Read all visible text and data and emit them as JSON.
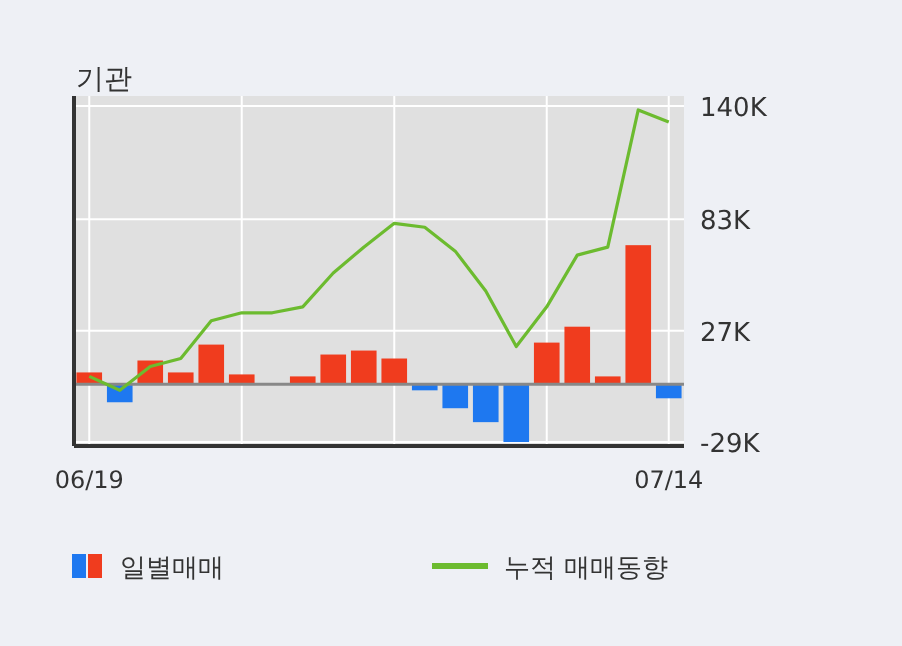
{
  "chart_data": {
    "type": "bar",
    "title": "기관",
    "categories": [
      "06/19",
      null,
      null,
      null,
      null,
      null,
      null,
      null,
      null,
      null,
      null,
      null,
      null,
      null,
      null,
      null,
      null,
      null,
      null,
      "07/14"
    ],
    "series": [
      {
        "name": "일별매매",
        "colors": [
          "#f03c1e",
          "#1e78f0",
          "#f03c1e",
          "#f03c1e",
          "#f03c1e",
          "#f03c1e",
          "#f03c1e",
          "#f03c1e",
          "#f03c1e",
          "#f03c1e",
          "#f03c1e",
          "#1e78f0",
          "#1e78f0",
          "#1e78f0",
          "#1e78f0",
          "#f03c1e",
          "#f03c1e",
          "#f03c1e",
          "#f03c1e",
          "#1e78f0"
        ],
        "values": [
          6000,
          -9000,
          12000,
          6000,
          20000,
          5000,
          0,
          4000,
          15000,
          17000,
          13000,
          -3000,
          -12000,
          -19000,
          -29000,
          21000,
          29000,
          4000,
          70000,
          -7000
        ]
      },
      {
        "name": "누적 매매동향",
        "type": "line",
        "color": "#6cbb2f",
        "values": [
          4000,
          -3000,
          9000,
          13000,
          32000,
          36000,
          36000,
          39000,
          56000,
          69000,
          81000,
          79000,
          67000,
          47000,
          19000,
          39000,
          65000,
          69000,
          138000,
          132000
        ]
      }
    ],
    "ylim": [
      -31000,
      141000
    ],
    "yticks": [
      {
        "value": -29000,
        "label": "-29K"
      },
      {
        "value": 27000,
        "label": "27K"
      },
      {
        "value": 83000,
        "label": "83K"
      },
      {
        "value": 140000,
        "label": "140K"
      }
    ],
    "grid": true,
    "legend": "bottom"
  }
}
